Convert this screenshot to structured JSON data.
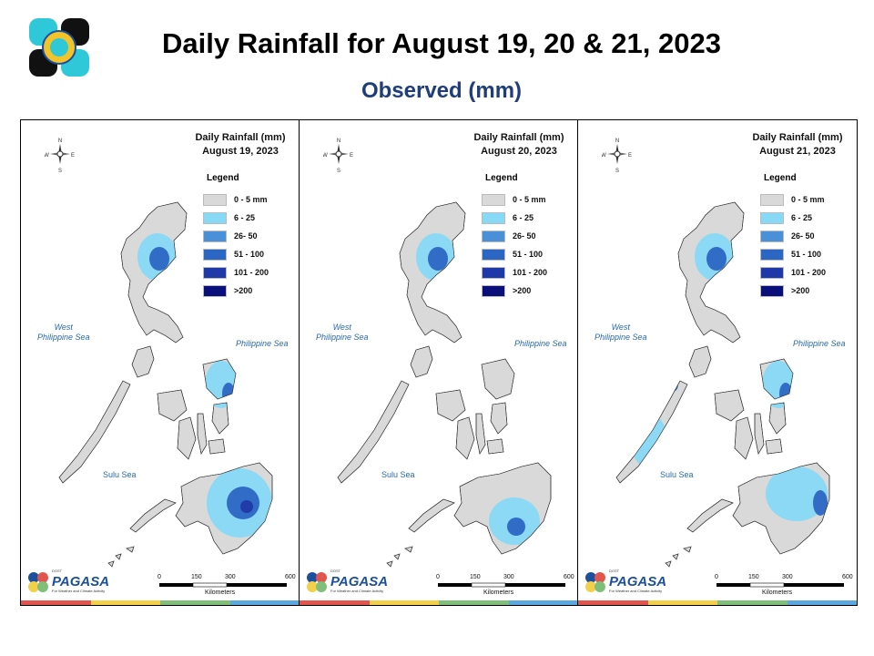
{
  "header": {
    "title": "Daily Rainfall for August 19, 20 & 21, 2023",
    "subtitle": "Observed (mm)"
  },
  "legend": {
    "title": "Legend",
    "classes": [
      {
        "label": "0 - 5 mm",
        "color": "#d9d9d9"
      },
      {
        "label": "6 - 25",
        "color": "#87d9f5"
      },
      {
        "label": "26- 50",
        "color": "#4a90d9"
      },
      {
        "label": "51 - 100",
        "color": "#2c66c4"
      },
      {
        "label": "101 - 200",
        "color": "#1f3aa8"
      },
      {
        "label": ">200",
        "color": "#0a0f7a"
      }
    ]
  },
  "panels": [
    {
      "title": "Daily Rainfall (mm)",
      "date": "August 19, 2023",
      "cores": [
        "north",
        "visayas-east",
        "mindanao"
      ]
    },
    {
      "title": "Daily Rainfall (mm)",
      "date": "August 20, 2023",
      "cores": [
        "north",
        "mindanao-south"
      ]
    },
    {
      "title": "Daily Rainfall (mm)",
      "date": "August 21, 2023",
      "cores": [
        "north",
        "visayas-east",
        "palawan",
        "mindanao-east"
      ]
    }
  ],
  "map": {
    "compass": {
      "n": "N",
      "s": "S",
      "e": "E",
      "w": "W"
    },
    "seas": {
      "west": "West\nPhilippine Sea",
      "east": "Philippine Sea",
      "sulu": "Sulu Sea"
    },
    "scale": {
      "ticks": [
        "0",
        "150",
        "300",
        "600"
      ],
      "unit": "Kilometers"
    },
    "agency": {
      "name": "PAGASA",
      "prefix": "DOST",
      "tagline": "For Weather and Climate Activity"
    },
    "stripe_colors": [
      "#e0554e",
      "#f2d04a",
      "#7fbf7a",
      "#5aa8e0"
    ]
  }
}
